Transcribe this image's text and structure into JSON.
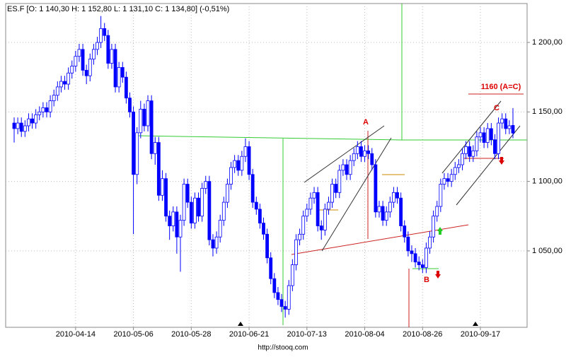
{
  "chart_data": {
    "type": "candlestick",
    "title": "ES.F [O: 1 140,30  H: 1 152,80  L: 1 131,10  C: 1 134,80] (-0,51%)",
    "source": "http://stooq.com",
    "annotations": [
      "A",
      "B",
      "C",
      "1160 (A=C)"
    ],
    "up_color": "#ffffff",
    "down_color": "#0000ff",
    "edge_color": "#0000ff",
    "grid": true,
    "ylim": [
      995,
      1228
    ],
    "yticks": [
      {
        "value": 1050,
        "label": "1 050,00"
      },
      {
        "value": 1100,
        "label": "1 100,00"
      },
      {
        "value": 1150,
        "label": "1 150,00"
      },
      {
        "value": 1200,
        "label": "1 200,00"
      }
    ],
    "categories": [
      null,
      null,
      null,
      null,
      null,
      null,
      null,
      null,
      null,
      null,
      null,
      null,
      null,
      null,
      null,
      null,
      null,
      "2010-04-14",
      null,
      null,
      null,
      null,
      null,
      null,
      null,
      null,
      null,
      null,
      null,
      null,
      null,
      null,
      null,
      "2010-05-06",
      null,
      null,
      null,
      null,
      null,
      null,
      null,
      null,
      null,
      null,
      null,
      null,
      null,
      null,
      null,
      "2010-05-28",
      null,
      null,
      null,
      null,
      null,
      null,
      null,
      null,
      null,
      null,
      null,
      null,
      null,
      null,
      null,
      "2010-06-21",
      null,
      null,
      null,
      null,
      null,
      null,
      null,
      null,
      null,
      null,
      null,
      null,
      null,
      null,
      null,
      "2010-07-13",
      null,
      null,
      null,
      null,
      null,
      null,
      null,
      null,
      null,
      null,
      null,
      null,
      null,
      null,
      null,
      "2010-08-04",
      null,
      null,
      null,
      null,
      null,
      null,
      null,
      null,
      null,
      null,
      null,
      null,
      null,
      null,
      null,
      "2010-08-26",
      null,
      null,
      null,
      null,
      null,
      null,
      null,
      null,
      null,
      null,
      null,
      null,
      null,
      null,
      null,
      "2010-09-17",
      null,
      null,
      null,
      null,
      null,
      null,
      null,
      null,
      null
    ],
    "open": [
      1142,
      1138,
      1142,
      1136,
      1140,
      1145,
      1142,
      1148,
      1150,
      1153,
      1150,
      1158,
      1162,
      1168,
      1172,
      1170,
      1178,
      1183,
      1190,
      1195,
      1180,
      1176,
      1188,
      1195,
      1200,
      1210,
      1205,
      1185,
      1195,
      1168,
      1182,
      1175,
      1160,
      1150,
      1105,
      1135,
      1152,
      1140,
      1158,
      1120,
      1128,
      1090,
      1102,
      1075,
      1068,
      1078,
      1060,
      1072,
      1098,
      1085,
      1070,
      1088,
      1075,
      1095,
      1100,
      1058,
      1052,
      1060,
      1072,
      1085,
      1098,
      1110,
      1115,
      1108,
      1118,
      1125,
      1105,
      1085,
      1080,
      1070,
      1062,
      1045,
      1030,
      1020,
      1015,
      1010,
      1008,
      1025,
      1040,
      1058,
      1062,
      1075,
      1080,
      1088,
      1092,
      1068,
      1065,
      1080,
      1085,
      1098,
      1092,
      1108,
      1112,
      1105,
      1115,
      1120,
      1125,
      1118,
      1122,
      1120,
      1112,
      1078,
      1082,
      1072,
      1078,
      1085,
      1092,
      1088,
      1068,
      1060,
      1050,
      1048,
      1042,
      1040,
      1038,
      1052,
      1060,
      1075,
      1082,
      1098,
      1102,
      1100,
      1105,
      1110,
      1112,
      1120,
      1125,
      1118,
      1122,
      1132,
      1135,
      1128,
      1138,
      1130,
      1120,
      1142,
      1145,
      1138,
      1140.3
    ],
    "high": [
      1146,
      1146,
      1146,
      1144,
      1149,
      1149,
      1152,
      1154,
      1157,
      1157,
      1162,
      1166,
      1172,
      1176,
      1176,
      1182,
      1187,
      1194,
      1199,
      1199,
      1184,
      1192,
      1199,
      1204,
      1219,
      1214,
      1209,
      1199,
      1199,
      1186,
      1186,
      1179,
      1164,
      1154,
      1139,
      1158,
      1156,
      1162,
      1162,
      1132,
      1132,
      1108,
      1106,
      1079,
      1082,
      1082,
      1076,
      1102,
      1102,
      1089,
      1092,
      1092,
      1099,
      1104,
      1104,
      1062,
      1064,
      1076,
      1089,
      1102,
      1114,
      1119,
      1119,
      1122,
      1131,
      1129,
      1109,
      1089,
      1084,
      1074,
      1066,
      1049,
      1034,
      1024,
      1019,
      1014,
      1029,
      1044,
      1062,
      1066,
      1079,
      1084,
      1092,
      1096,
      1096,
      1072,
      1084,
      1089,
      1102,
      1102,
      1112,
      1116,
      1116,
      1119,
      1124,
      1129,
      1129,
      1126,
      1126,
      1124,
      1116,
      1086,
      1086,
      1082,
      1089,
      1096,
      1096,
      1092,
      1072,
      1064,
      1054,
      1052,
      1046,
      1044,
      1056,
      1064,
      1079,
      1086,
      1102,
      1106,
      1106,
      1109,
      1114,
      1116,
      1124,
      1129,
      1129,
      1126,
      1136,
      1139,
      1139,
      1142,
      1142,
      1134,
      1146,
      1149,
      1149,
      1144,
      1152.8
    ],
    "low": [
      1128,
      1134,
      1132,
      1132,
      1136,
      1138,
      1138,
      1144,
      1146,
      1146,
      1146,
      1154,
      1158,
      1164,
      1166,
      1166,
      1174,
      1179,
      1186,
      1176,
      1170,
      1172,
      1184,
      1191,
      1196,
      1201,
      1181,
      1181,
      1164,
      1164,
      1171,
      1156,
      1146,
      1062,
      1098,
      1131,
      1136,
      1136,
      1116,
      1112,
      1086,
      1086,
      1071,
      1058,
      1064,
      1048,
      1035,
      1068,
      1081,
      1066,
      1066,
      1071,
      1071,
      1091,
      1054,
      1046,
      1048,
      1056,
      1068,
      1081,
      1094,
      1106,
      1104,
      1104,
      1114,
      1101,
      1081,
      1076,
      1066,
      1058,
      1041,
      1026,
      1016,
      1011,
      1006,
      1002,
      1004,
      1021,
      1036,
      1054,
      1058,
      1071,
      1076,
      1084,
      1064,
      1058,
      1061,
      1076,
      1081,
      1088,
      1088,
      1104,
      1101,
      1101,
      1111,
      1116,
      1114,
      1114,
      1116,
      1108,
      1074,
      1074,
      1068,
      1068,
      1074,
      1081,
      1084,
      1064,
      1056,
      1046,
      1042,
      1038,
      1036,
      1034,
      1034,
      1048,
      1056,
      1071,
      1078,
      1094,
      1096,
      1096,
      1101,
      1106,
      1108,
      1116,
      1114,
      1114,
      1118,
      1128,
      1124,
      1124,
      1126,
      1116,
      1116,
      1138,
      1134,
      1134,
      1131.1
    ],
    "close": [
      1138,
      1142,
      1136,
      1140,
      1145,
      1142,
      1148,
      1150,
      1153,
      1150,
      1158,
      1162,
      1168,
      1172,
      1170,
      1178,
      1183,
      1190,
      1195,
      1180,
      1176,
      1188,
      1195,
      1200,
      1210,
      1205,
      1185,
      1195,
      1168,
      1182,
      1175,
      1160,
      1150,
      1105,
      1135,
      1152,
      1140,
      1158,
      1120,
      1128,
      1090,
      1102,
      1075,
      1068,
      1078,
      1060,
      1072,
      1098,
      1085,
      1070,
      1088,
      1075,
      1095,
      1100,
      1058,
      1052,
      1060,
      1072,
      1085,
      1098,
      1110,
      1115,
      1108,
      1118,
      1125,
      1105,
      1085,
      1080,
      1070,
      1062,
      1045,
      1030,
      1020,
      1015,
      1010,
      1008,
      1025,
      1040,
      1058,
      1062,
      1075,
      1080,
      1088,
      1092,
      1068,
      1065,
      1080,
      1085,
      1098,
      1092,
      1108,
      1112,
      1105,
      1115,
      1120,
      1125,
      1118,
      1122,
      1120,
      1112,
      1078,
      1082,
      1072,
      1078,
      1085,
      1092,
      1088,
      1068,
      1060,
      1050,
      1048,
      1042,
      1040,
      1038,
      1052,
      1060,
      1075,
      1082,
      1098,
      1102,
      1100,
      1105,
      1110,
      1112,
      1120,
      1125,
      1118,
      1122,
      1132,
      1135,
      1128,
      1138,
      1130,
      1120,
      1142,
      1145,
      1138,
      1140,
      1134.8
    ]
  }
}
